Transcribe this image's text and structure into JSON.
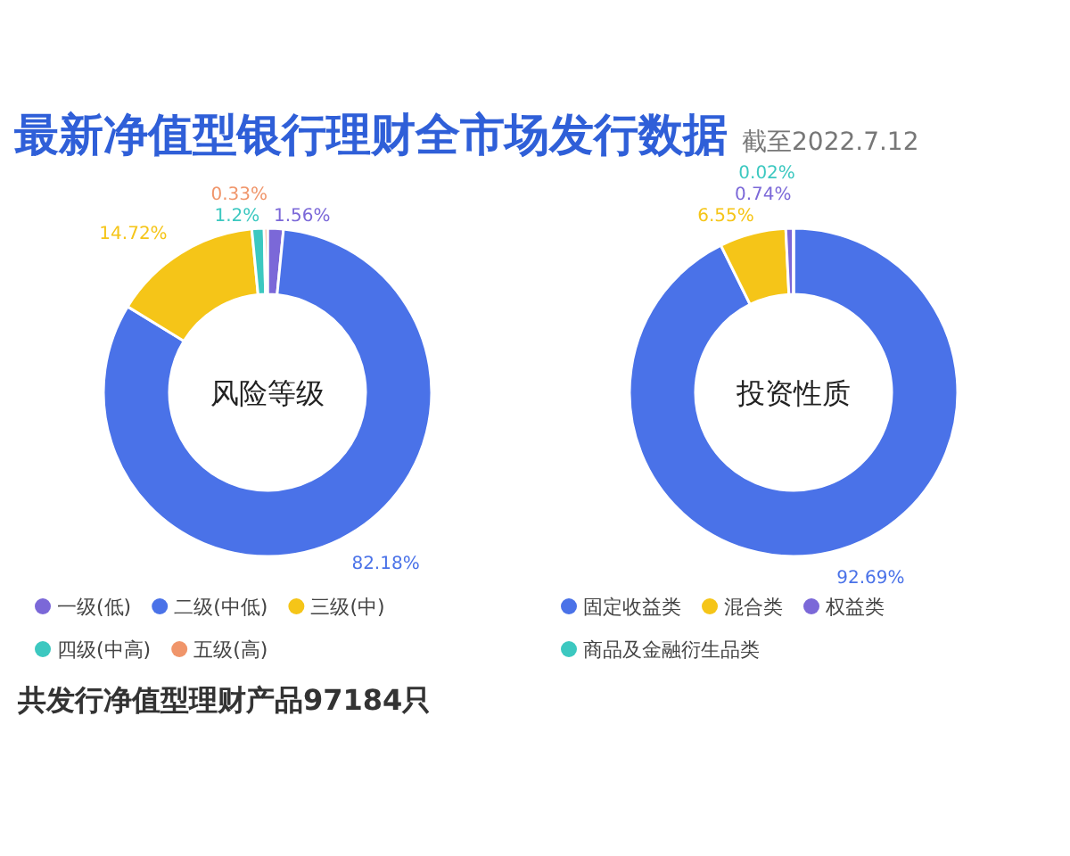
{
  "chart_data": [
    {
      "type": "other",
      "title": "最新净值型银行理财全市场发行数据",
      "subtitle": "截至2022.7.12",
      "annotations": [
        "共发行净值型理财产品97184只"
      ]
    },
    {
      "type": "donut",
      "title": "风险等级",
      "categories": [
        "一级(低)",
        "二级(中低)",
        "三级(中)",
        "四级(中高)",
        "五级(高)"
      ],
      "values": [
        1.56,
        82.18,
        14.72,
        1.2,
        0.33
      ],
      "value_labels": [
        "1.56%",
        "82.18%",
        "14.72%",
        "1.2%",
        "0.33%"
      ],
      "colors": [
        "#7b68d8",
        "#4a72e8",
        "#f5c518",
        "#3cc8c0",
        "#f0956a"
      ],
      "legend": "bottom"
    },
    {
      "type": "donut",
      "title": "投资性质",
      "categories": [
        "固定收益类",
        "混合类",
        "权益类",
        "商品及金融衍生品类"
      ],
      "values": [
        92.69,
        6.55,
        0.74,
        0.02
      ],
      "value_labels": [
        "92.69%",
        "6.55%",
        "0.74%",
        "0.02%"
      ],
      "colors": [
        "#4a72e8",
        "#f5c518",
        "#7b68d8",
        "#3cc8c0"
      ],
      "legend": "bottom"
    }
  ]
}
